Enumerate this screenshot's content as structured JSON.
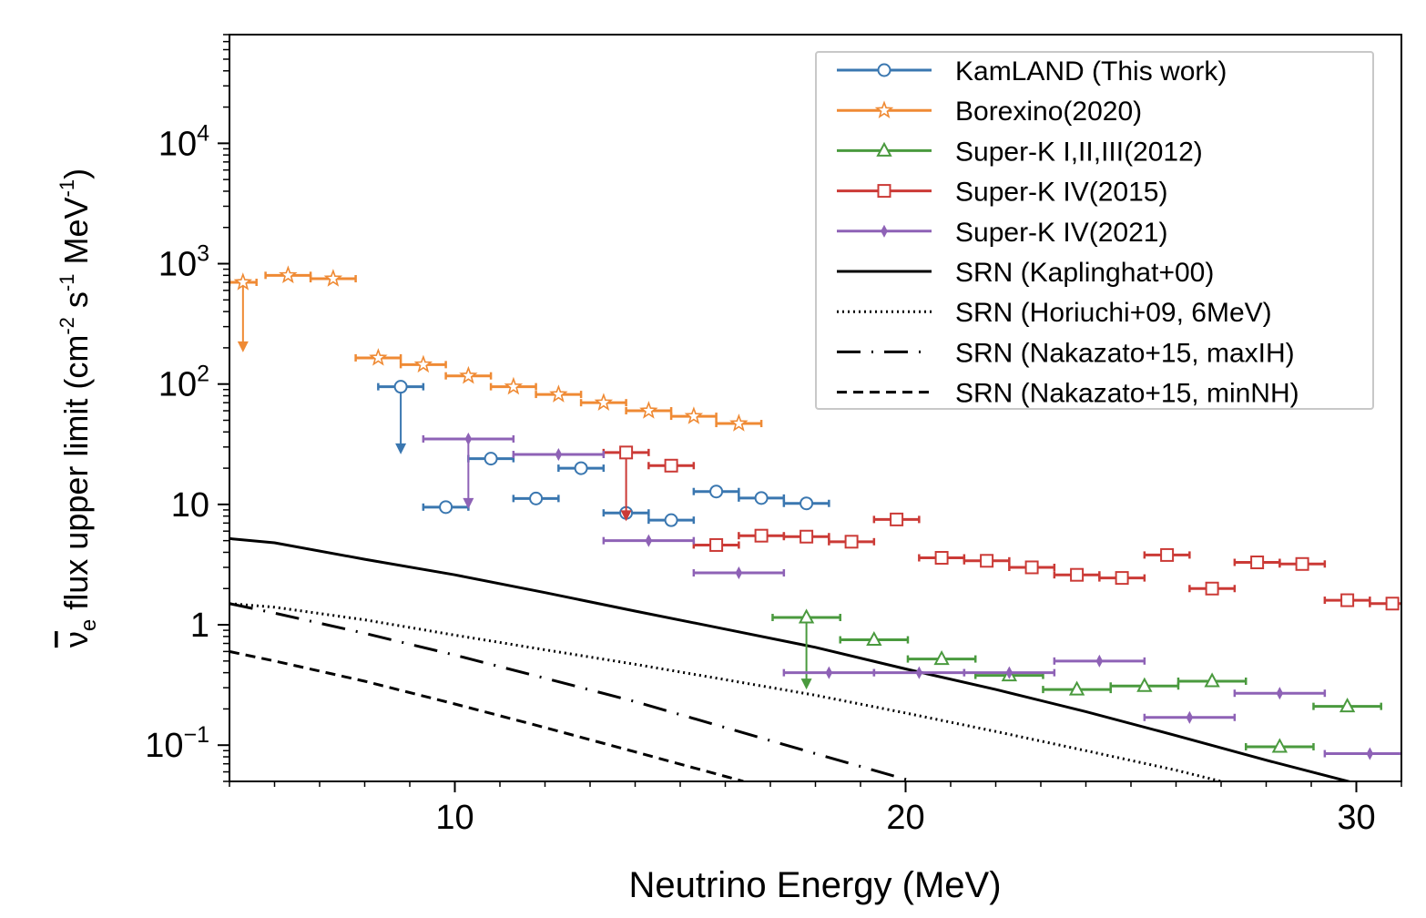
{
  "chart_data": {
    "type": "scatter",
    "xlabel": "Neutrino Energy (MeV)",
    "ylabel_parts": {
      "nu": "ν",
      "sub": "e",
      "text1": " flux upper limit (cm",
      "sup1": "-2",
      "text2": " s",
      "sup2": "-1",
      "text3": " MeV",
      "sup3": "-1",
      "text4": ")"
    },
    "xlim": [
      5,
      31
    ],
    "ylim": [
      0.05,
      80000
    ],
    "y_scale": "log",
    "x_ticks": [
      "10",
      "20",
      "30"
    ],
    "y_ticks": [
      {
        "value": 0.1,
        "label": "10",
        "sup": "−1"
      },
      {
        "value": 1,
        "label": "1",
        "sup": ""
      },
      {
        "value": 10,
        "label": "10",
        "sup": ""
      },
      {
        "value": 100,
        "label": "10",
        "sup": "2"
      },
      {
        "value": 1000,
        "label": "10",
        "sup": "3"
      },
      {
        "value": 10000,
        "label": "10",
        "sup": "4"
      }
    ],
    "legend_position": "top-right",
    "series": [
      {
        "name": "KamLAND (This work)",
        "color": "#3a77b0",
        "marker": "circle",
        "points": [
          {
            "x": 8.8,
            "xerr": 0.5,
            "y": 95,
            "arrow_to": 27
          },
          {
            "x": 9.8,
            "xerr": 0.5,
            "y": 9.5
          },
          {
            "x": 10.8,
            "xerr": 0.5,
            "y": 24
          },
          {
            "x": 11.8,
            "xerr": 0.5,
            "y": 11.2
          },
          {
            "x": 12.8,
            "xerr": 0.5,
            "y": 20
          },
          {
            "x": 13.8,
            "xerr": 0.5,
            "y": 8.5
          },
          {
            "x": 14.8,
            "xerr": 0.5,
            "y": 7.4
          },
          {
            "x": 15.8,
            "xerr": 0.5,
            "y": 12.8
          },
          {
            "x": 16.8,
            "xerr": 0.5,
            "y": 11.3
          },
          {
            "x": 17.8,
            "xerr": 0.5,
            "y": 10.2
          }
        ]
      },
      {
        "name": "Borexino(2020)",
        "color": "#ef8a34",
        "marker": "star",
        "points": [
          {
            "x": 5.3,
            "xerr": 0.3,
            "y": 700,
            "arrow_to": 190
          },
          {
            "x": 6.3,
            "xerr": 0.5,
            "y": 800
          },
          {
            "x": 7.3,
            "xerr": 0.5,
            "y": 750
          },
          {
            "x": 8.3,
            "xerr": 0.5,
            "y": 165
          },
          {
            "x": 9.3,
            "xerr": 0.5,
            "y": 145
          },
          {
            "x": 10.3,
            "xerr": 0.5,
            "y": 117
          },
          {
            "x": 11.3,
            "xerr": 0.5,
            "y": 95
          },
          {
            "x": 12.3,
            "xerr": 0.5,
            "y": 82
          },
          {
            "x": 13.3,
            "xerr": 0.5,
            "y": 70
          },
          {
            "x": 14.3,
            "xerr": 0.5,
            "y": 60
          },
          {
            "x": 15.3,
            "xerr": 0.5,
            "y": 54
          },
          {
            "x": 16.3,
            "xerr": 0.5,
            "y": 47
          }
        ]
      },
      {
        "name": "Super-K I,II,III(2012)",
        "color": "#4a9a3e",
        "marker": "triangle",
        "points": [
          {
            "x": 17.8,
            "xerr": 0.75,
            "y": 1.15,
            "arrow_to": 0.3
          },
          {
            "x": 19.3,
            "xerr": 0.75,
            "y": 0.75
          },
          {
            "x": 20.8,
            "xerr": 0.75,
            "y": 0.52
          },
          {
            "x": 22.3,
            "xerr": 0.75,
            "y": 0.38
          },
          {
            "x": 23.8,
            "xerr": 0.75,
            "y": 0.29
          },
          {
            "x": 25.3,
            "xerr": 0.75,
            "y": 0.31
          },
          {
            "x": 26.8,
            "xerr": 0.75,
            "y": 0.34
          },
          {
            "x": 28.3,
            "xerr": 0.75,
            "y": 0.097
          },
          {
            "x": 29.8,
            "xerr": 0.75,
            "y": 0.21
          }
        ]
      },
      {
        "name": "Super-K IV(2015)",
        "color": "#cb3a36",
        "marker": "square",
        "points": [
          {
            "x": 13.8,
            "xerr": 0.5,
            "y": 27,
            "arrow_to": 7.5
          },
          {
            "x": 14.8,
            "xerr": 0.5,
            "y": 21
          },
          {
            "x": 15.8,
            "xerr": 0.5,
            "y": 4.6
          },
          {
            "x": 16.8,
            "xerr": 0.5,
            "y": 5.5
          },
          {
            "x": 17.8,
            "xerr": 0.5,
            "y": 5.4
          },
          {
            "x": 18.8,
            "xerr": 0.5,
            "y": 4.9
          },
          {
            "x": 19.8,
            "xerr": 0.5,
            "y": 7.5
          },
          {
            "x": 20.8,
            "xerr": 0.5,
            "y": 3.6
          },
          {
            "x": 21.8,
            "xerr": 0.5,
            "y": 3.4
          },
          {
            "x": 22.8,
            "xerr": 0.5,
            "y": 3.0
          },
          {
            "x": 23.8,
            "xerr": 0.5,
            "y": 2.6
          },
          {
            "x": 24.8,
            "xerr": 0.5,
            "y": 2.45
          },
          {
            "x": 25.8,
            "xerr": 0.5,
            "y": 3.8
          },
          {
            "x": 26.8,
            "xerr": 0.5,
            "y": 2.0
          },
          {
            "x": 27.8,
            "xerr": 0.5,
            "y": 3.3
          },
          {
            "x": 28.8,
            "xerr": 0.5,
            "y": 3.2
          },
          {
            "x": 29.8,
            "xerr": 0.5,
            "y": 1.6
          },
          {
            "x": 30.8,
            "xerr": 0.5,
            "y": 1.5
          }
        ]
      },
      {
        "name": "Super-K IV(2021)",
        "color": "#8e62b6",
        "marker": "thin_diamond",
        "points": [
          {
            "x": 10.3,
            "xerr": 1.0,
            "y": 35,
            "arrow_to": 9.5
          },
          {
            "x": 12.3,
            "xerr": 1.0,
            "y": 26
          },
          {
            "x": 14.3,
            "xerr": 1.0,
            "y": 5.0
          },
          {
            "x": 16.3,
            "xerr": 1.0,
            "y": 2.7
          },
          {
            "x": 18.3,
            "xerr": 1.0,
            "y": 0.4
          },
          {
            "x": 20.3,
            "xerr": 1.0,
            "y": 0.4
          },
          {
            "x": 22.3,
            "xerr": 1.0,
            "y": 0.4
          },
          {
            "x": 24.3,
            "xerr": 1.0,
            "y": 0.5
          },
          {
            "x": 26.3,
            "xerr": 1.0,
            "y": 0.17
          },
          {
            "x": 28.3,
            "xerr": 1.0,
            "y": 0.27
          },
          {
            "x": 30.3,
            "xerr": 1.0,
            "y": 0.085
          }
        ]
      },
      {
        "name": "SRN (Kaplinghat+00)",
        "color": "#000000",
        "line": "solid",
        "curve": {
          "x": [
            5,
            6,
            8,
            10,
            12,
            14,
            16,
            18,
            20,
            22,
            24,
            26,
            28,
            30
          ],
          "y": [
            5.2,
            4.8,
            3.5,
            2.6,
            1.85,
            1.3,
            0.92,
            0.65,
            0.43,
            0.29,
            0.19,
            0.12,
            0.075,
            0.048
          ]
        }
      },
      {
        "name": "SRN (Horiuchi+09, 6MeV)",
        "color": "#000000",
        "line": "dotted",
        "curve": {
          "x": [
            5,
            6,
            8,
            10,
            12,
            14,
            16,
            18,
            20,
            22,
            24,
            26,
            27
          ],
          "y": [
            1.5,
            1.4,
            1.1,
            0.82,
            0.62,
            0.47,
            0.35,
            0.26,
            0.185,
            0.13,
            0.09,
            0.062,
            0.05
          ]
        }
      },
      {
        "name": "SRN (Nakazato+15, maxIH)",
        "color": "#000000",
        "line": "dashdot",
        "curve": {
          "x": [
            5,
            6,
            8,
            10,
            12,
            14,
            16,
            18,
            20,
            20.5
          ],
          "y": [
            1.5,
            1.25,
            0.85,
            0.56,
            0.36,
            0.23,
            0.14,
            0.085,
            0.052,
            0.047
          ]
        }
      },
      {
        "name": "SRN (Nakazato+15, minNH)",
        "color": "#000000",
        "line": "dashed",
        "curve": {
          "x": [
            5,
            6,
            8,
            10,
            12,
            14,
            16,
            16.4
          ],
          "y": [
            0.6,
            0.5,
            0.34,
            0.22,
            0.14,
            0.088,
            0.055,
            0.05
          ]
        }
      }
    ]
  }
}
